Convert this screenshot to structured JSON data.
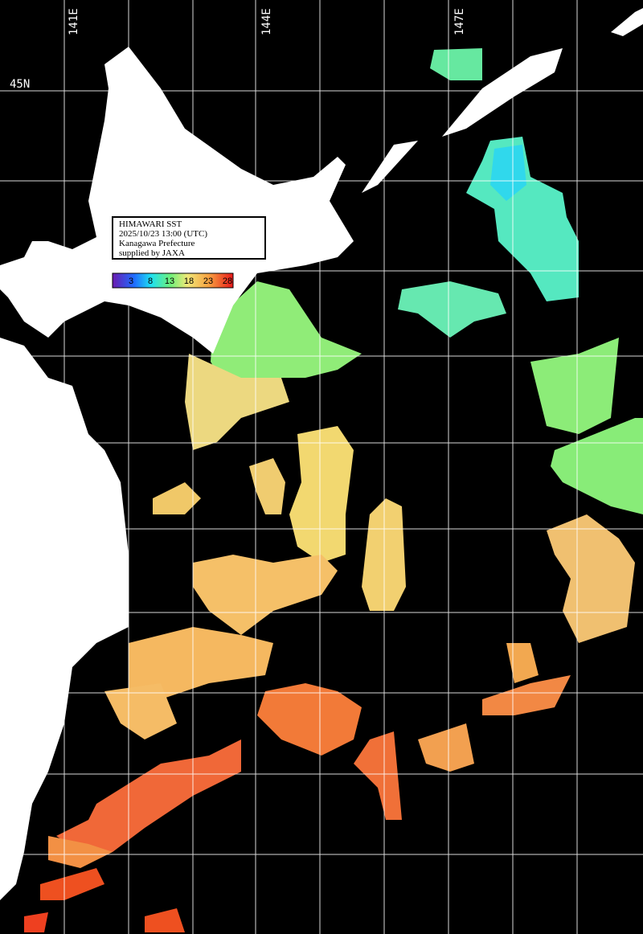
{
  "map_labels": {
    "longitudes": [
      "141E",
      "144E",
      "147E"
    ],
    "latitudes": [
      "45N"
    ]
  },
  "info_box": {
    "lines": [
      "HIMAWARI SST",
      "2025/10/23 13:00 (UTC)",
      "Kanagawa Prefecture",
      "supplied by JAXA"
    ]
  },
  "color_bar": {
    "labels": [
      3,
      8,
      13,
      18,
      23,
      28
    ]
  }
}
